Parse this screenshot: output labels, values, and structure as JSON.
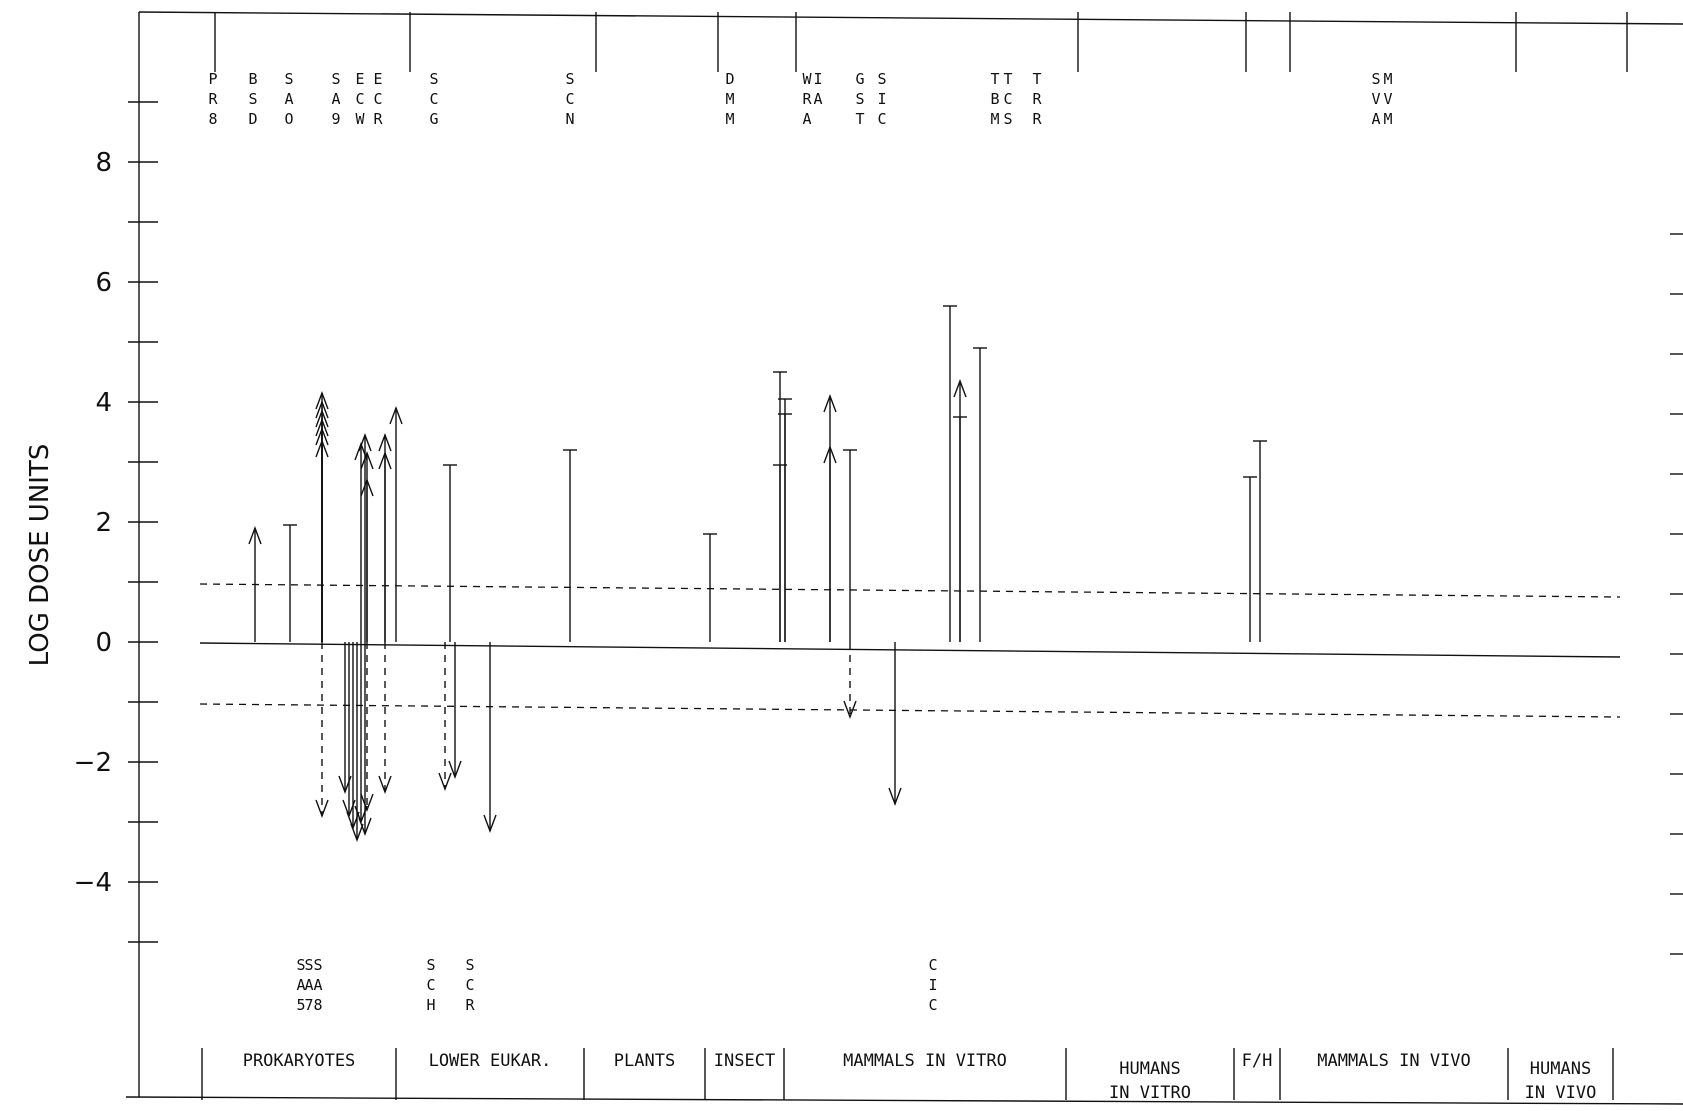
{
  "chart_data": {
    "type": "activity profile",
    "ylabel": "LOG DOSE UNITS",
    "ylim": [
      -6,
      10.5
    ],
    "yticks_labeled": [
      8,
      6,
      4,
      2,
      0,
      -2,
      -4
    ],
    "ytick_labels": [
      "8",
      "6",
      "4",
      "2",
      "0",
      "−2",
      "−4"
    ],
    "threshold_lines": [
      0.95,
      -1.05
    ],
    "categories": [
      {
        "label": "PROKARYOTES",
        "label2": ""
      },
      {
        "label": "LOWER EUKAR.",
        "label2": ""
      },
      {
        "label": "PLANTS",
        "label2": ""
      },
      {
        "label": "INSECT",
        "label2": ""
      },
      {
        "label": "MAMMALS  IN VITRO",
        "label2": ""
      },
      {
        "label": "HUMANS",
        "label2": "IN VITRO"
      },
      {
        "label": "F/H",
        "label2": ""
      },
      {
        "label": "MAMMALS  IN VIVO",
        "label2": ""
      },
      {
        "label": "HUMANS",
        "label2": "IN VIVO"
      }
    ],
    "top_codes": [
      "PR8",
      "BSD",
      "SAO",
      "SA9",
      "ECW",
      "ECR",
      "SCG",
      "SCN",
      "DMM",
      "WRA",
      "IA",
      "GST",
      "SIC",
      "TBM",
      "TCS",
      "TRR",
      "SVA",
      "MVM"
    ],
    "bottom_codes": [
      "SA5",
      "SA7",
      "SA8",
      "SCH",
      "SCR",
      "CIC"
    ],
    "positive_bars": [
      {
        "x": 0.55,
        "y": 1.9,
        "arrow": true
      },
      {
        "x": 0.9,
        "y": 1.95,
        "arrow": false
      },
      {
        "x": 1.22,
        "y": 4.15,
        "arrow": true
      },
      {
        "x": 1.22,
        "y": 4.0,
        "arrow": true
      },
      {
        "x": 1.22,
        "y": 3.85,
        "arrow": true
      },
      {
        "x": 1.22,
        "y": 3.7,
        "arrow": true
      },
      {
        "x": 1.22,
        "y": 3.55,
        "arrow": true
      },
      {
        "x": 1.22,
        "y": 3.35,
        "arrow": true
      },
      {
        "x": 1.61,
        "y": 3.3,
        "arrow": true
      },
      {
        "x": 1.65,
        "y": 3.45,
        "arrow": true
      },
      {
        "x": 1.67,
        "y": 3.15,
        "arrow": true
      },
      {
        "x": 1.67,
        "y": 2.7,
        "arrow": true
      },
      {
        "x": 1.85,
        "y": 3.45,
        "arrow": true
      },
      {
        "x": 1.85,
        "y": 3.15,
        "arrow": true
      },
      {
        "x": 1.96,
        "y": 3.9,
        "arrow": true
      },
      {
        "x": 2.5,
        "y": 2.95,
        "arrow": false
      },
      {
        "x": 3.7,
        "y": 3.2,
        "arrow": false
      },
      {
        "x": 5.1,
        "y": 1.8,
        "arrow": false
      },
      {
        "x": 5.8,
        "y": 4.5,
        "arrow": false
      },
      {
        "x": 5.8,
        "y": 2.95,
        "arrow": false
      },
      {
        "x": 5.85,
        "y": 4.05,
        "arrow": false
      },
      {
        "x": 5.85,
        "y": 3.8,
        "arrow": false
      },
      {
        "x": 6.3,
        "y": 4.1,
        "arrow": true
      },
      {
        "x": 6.3,
        "y": 3.25,
        "arrow": true
      },
      {
        "x": 6.5,
        "y": 3.2,
        "arrow": false
      },
      {
        "x": 7.5,
        "y": 5.6,
        "arrow": false
      },
      {
        "x": 7.6,
        "y": 4.35,
        "arrow": true
      },
      {
        "x": 7.6,
        "y": 3.75,
        "arrow": false
      },
      {
        "x": 7.8,
        "y": 4.9,
        "arrow": false
      },
      {
        "x": 10.5,
        "y": 2.75,
        "arrow": false
      },
      {
        "x": 10.6,
        "y": 3.35,
        "arrow": false
      }
    ],
    "negative_bars": [
      {
        "x": 1.22,
        "y": -2.9,
        "arrow": true,
        "dashed": true
      },
      {
        "x": 1.45,
        "y": -2.5,
        "arrow": true,
        "dashed": false
      },
      {
        "x": 1.49,
        "y": -2.9,
        "arrow": true,
        "dashed": false
      },
      {
        "x": 1.53,
        "y": -3.1,
        "arrow": true,
        "dashed": false
      },
      {
        "x": 1.57,
        "y": -3.3,
        "arrow": true,
        "dashed": false
      },
      {
        "x": 1.61,
        "y": -3.0,
        "arrow": true,
        "dashed": false
      },
      {
        "x": 1.65,
        "y": -3.2,
        "arrow": true,
        "dashed": false
      },
      {
        "x": 1.67,
        "y": -2.8,
        "arrow": true,
        "dashed": true
      },
      {
        "x": 1.85,
        "y": -2.5,
        "arrow": true,
        "dashed": true
      },
      {
        "x": 2.45,
        "y": -2.45,
        "arrow": true,
        "dashed": true
      },
      {
        "x": 2.55,
        "y": -2.25,
        "arrow": true,
        "dashed": false
      },
      {
        "x": 2.9,
        "y": -3.15,
        "arrow": true,
        "dashed": false
      },
      {
        "x": 6.5,
        "y": -1.25,
        "arrow": true,
        "dashed": true
      },
      {
        "x": 6.95,
        "y": -2.7,
        "arrow": true,
        "dashed": false
      }
    ]
  }
}
